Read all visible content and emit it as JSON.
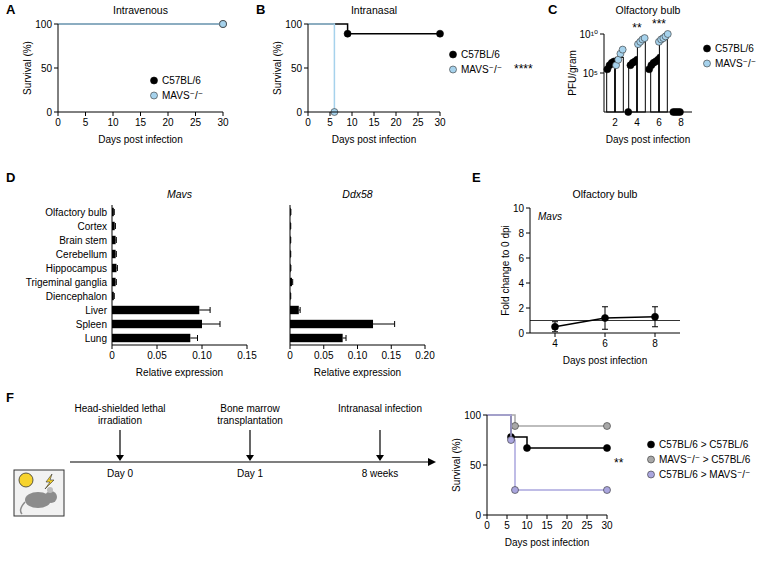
{
  "chart_data": [
    {
      "type": "line",
      "line_style": "step",
      "marker": "circle",
      "panel": "A",
      "title": "Intravenous",
      "x_label": "Days post infection",
      "y_label": "Survival (%)",
      "xlim": [
        0,
        30
      ],
      "xticks": [
        0,
        5,
        10,
        15,
        20,
        25,
        30
      ],
      "ylim": [
        0,
        100
      ],
      "yticks": [
        0,
        50,
        100
      ],
      "legend": "lower right",
      "series": [
        {
          "name": "C57BL/6",
          "color": "#000000",
          "x": [
            0,
            30
          ],
          "values": [
            100,
            100
          ]
        },
        {
          "name": "MAVS⁻/⁻",
          "color": "#a6d2ec",
          "x": [
            0,
            30
          ],
          "values": [
            100,
            100
          ]
        }
      ]
    },
    {
      "type": "line",
      "line_style": "step",
      "marker": "circle",
      "panel": "B",
      "title": "Intranasal",
      "x_label": "Days post infection",
      "y_label": "Survival (%)",
      "xlim": [
        0,
        30
      ],
      "xticks": [
        0,
        5,
        10,
        15,
        20,
        25,
        30
      ],
      "ylim": [
        0,
        100
      ],
      "yticks": [
        0,
        50,
        100
      ],
      "legend": "right",
      "annotation": "****",
      "series": [
        {
          "name": "C57BL/6",
          "color": "#000000",
          "x": [
            0,
            9,
            30
          ],
          "values": [
            100,
            89,
            89
          ]
        },
        {
          "name": "MAVS⁻/⁻",
          "color": "#a6d2ec",
          "x": [
            0,
            6
          ],
          "values": [
            100,
            0
          ]
        }
      ]
    },
    {
      "type": "bar",
      "panel": "C",
      "title": "Olfactory bulb",
      "x_label": "Days post infection",
      "y_label": "PFU/gram",
      "log": "y",
      "categories": [
        "2",
        "4",
        "6",
        "8"
      ],
      "ylim": [
        1,
        10000000000
      ],
      "yticks": [
        {
          "value": 100000,
          "label": "10⁵"
        },
        {
          "value": 10000000000,
          "label": "10¹⁰"
        }
      ],
      "legend": "right",
      "series": [
        {
          "name": "C57BL/6",
          "color": "#000000",
          "values": [
            1000000,
            2000000,
            2000000,
            1
          ],
          "points": [
            [
              300000,
              1000000,
              2000000,
              3000000
            ],
            [
              1,
              1000000,
              2000000,
              3000000,
              5000000
            ],
            [
              300000,
              1000000,
              2000000,
              3000000,
              5000000,
              10000000
            ],
            [
              1,
              1,
              1,
              1
            ]
          ]
        },
        {
          "name": "MAVS⁻/⁻",
          "color": "#a6d2ec",
          "values": [
            10000000,
            1000000000,
            3000000000,
            null
          ],
          "points": [
            [
              1000000,
              5000000,
              30000000,
              100000000
            ],
            [
              500000000,
              1000000000,
              2000000000,
              3000000000
            ],
            [
              1000000000,
              2000000000,
              3000000000,
              5000000000,
              10000000000
            ],
            []
          ]
        }
      ],
      "annotations": [
        {
          "category": "4",
          "text": "**"
        },
        {
          "category": "6",
          "text": "***"
        }
      ]
    },
    {
      "type": "bar",
      "orientation": "horizontal",
      "panel": "D",
      "title": "Mavs",
      "x_label": "Relative expression",
      "color": "#000000",
      "categories": [
        "Olfactory bulb",
        "Cortex",
        "Brain stem",
        "Cerebellum",
        "Hippocampus",
        "Trigeminal ganglia",
        "Diencephalon",
        "Liver",
        "Spleen",
        "Lung"
      ],
      "values": [
        0.002,
        0.003,
        0.004,
        0.004,
        0.005,
        0.004,
        0.002,
        0.097,
        0.1,
        0.087
      ],
      "errors": [
        0.0005,
        0.0008,
        0.0008,
        0.0008,
        0.001,
        0.0008,
        0.0005,
        0.012,
        0.02,
        0.008
      ],
      "xlim": [
        0,
        0.15
      ],
      "xticks": [
        0,
        0.05,
        {
          "value": 0.1,
          "label": "0.10"
        },
        0.15
      ]
    },
    {
      "type": "bar",
      "orientation": "horizontal",
      "title": "Ddx58",
      "x_label": "Relative expression",
      "color": "#000000",
      "tick_labels": "x",
      "categories": [
        "Olfactory bulb",
        "Cortex",
        "Brain stem",
        "Cerebellum",
        "Hippocampus",
        "Trigeminal ganglia",
        "Diencephalon",
        "Liver",
        "Spleen",
        "Lung"
      ],
      "values": [
        0.001,
        0.0008,
        0.0008,
        0.0008,
        0.001,
        0.003,
        0.0008,
        0.013,
        0.123,
        0.078
      ],
      "errors": [
        0.0003,
        0.0003,
        0.0003,
        0.0003,
        0.0003,
        0.001,
        0.0003,
        0.002,
        0.032,
        0.005
      ],
      "xlim": [
        0,
        0.2
      ],
      "xticks": [
        0,
        0.05,
        {
          "value": 0.1,
          "label": "0.10"
        },
        0.15,
        {
          "value": 0.2,
          "label": "0.20"
        }
      ]
    },
    {
      "type": "line",
      "marker": "circle",
      "panel": "E",
      "title": "Olfactory bulb",
      "subtitle": "Mavs",
      "x_label": "Days post infection",
      "y_label": "Fold change to 0 dpi",
      "color": "#000000",
      "x": [
        4,
        6,
        8
      ],
      "values": [
        0.5,
        1.2,
        1.3
      ],
      "errors": [
        0.4,
        0.9,
        0.8
      ],
      "baseline": 1,
      "xlim": [
        3,
        9
      ],
      "xticks": [
        4,
        6,
        8
      ],
      "ylim": [
        0,
        10
      ],
      "yticks": [
        0,
        2,
        4,
        6,
        8,
        10
      ]
    },
    {
      "type": "line",
      "line_style": "step",
      "marker": "circle",
      "x_label": "Days post infection",
      "y_label": "Survival (%)",
      "xlim": [
        0,
        30
      ],
      "xticks": [
        0,
        5,
        10,
        15,
        20,
        25,
        30
      ],
      "ylim": [
        0,
        100
      ],
      "yticks": [
        0,
        50,
        100
      ],
      "legend": "right",
      "annotation": "**",
      "series": [
        {
          "name": "C57BL/6 > C57BL/6",
          "color": "#000000",
          "x": [
            0,
            6,
            10,
            30
          ],
          "values": [
            100,
            78,
            67,
            67
          ]
        },
        {
          "name": "MAVS⁻/⁻ > C57BL/6",
          "color": "#a8a8a8",
          "x": [
            0,
            7,
            30
          ],
          "values": [
            100,
            89,
            89
          ]
        },
        {
          "name": "C57BL/6 > MAVS⁻/⁻",
          "color": "#aaa6de",
          "x": [
            0,
            6,
            7,
            30
          ],
          "values": [
            100,
            75,
            25,
            25
          ]
        }
      ]
    }
  ],
  "diagram": {
    "panel": "F",
    "events": [
      {
        "label": "Head-shielded lethal irradiation",
        "time": "Day 0"
      },
      {
        "label": "Bone marrow transplantation",
        "time": "Day 1"
      },
      {
        "label": "Intranasal infection",
        "time": "8 weeks"
      }
    ]
  }
}
